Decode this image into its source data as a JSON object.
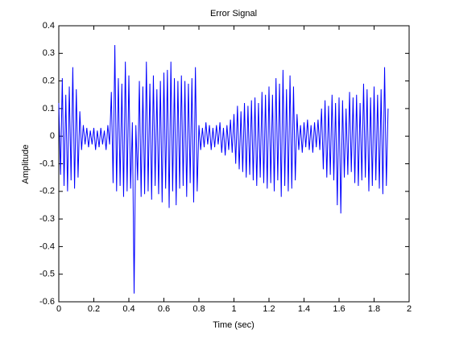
{
  "chart_data": {
    "type": "line",
    "title": "Error Signal",
    "x_label": "Time (sec)",
    "y_label": "Amplitude",
    "x": [
      0,
      0.01,
      0.02,
      0.03,
      0.04,
      0.05,
      0.06,
      0.07,
      0.08,
      0.09,
      0.1,
      0.11,
      0.12,
      0.13,
      0.14,
      0.15,
      0.16,
      0.17,
      0.18,
      0.19,
      0.2,
      0.21,
      0.22,
      0.23,
      0.24,
      0.25,
      0.26,
      0.27,
      0.28,
      0.29,
      0.3,
      0.31,
      0.32,
      0.33,
      0.34,
      0.35,
      0.36,
      0.37,
      0.38,
      0.39,
      0.4,
      0.41,
      0.42,
      0.43,
      0.44,
      0.45,
      0.46,
      0.47,
      0.48,
      0.49,
      0.5,
      0.51,
      0.52,
      0.53,
      0.54,
      0.55,
      0.56,
      0.57,
      0.58,
      0.59,
      0.6,
      0.61,
      0.62,
      0.63,
      0.64,
      0.65,
      0.66,
      0.67,
      0.68,
      0.69,
      0.7,
      0.71,
      0.72,
      0.73,
      0.74,
      0.75,
      0.76,
      0.77,
      0.78,
      0.79,
      0.8,
      0.81,
      0.82,
      0.83,
      0.84,
      0.85,
      0.86,
      0.87,
      0.88,
      0.89,
      0.9,
      0.91,
      0.92,
      0.93,
      0.94,
      0.95,
      0.96,
      0.97,
      0.98,
      0.99,
      1,
      1.01,
      1.02,
      1.03,
      1.04,
      1.05,
      1.06,
      1.07,
      1.08,
      1.09,
      1.1,
      1.11,
      1.12,
      1.13,
      1.14,
      1.15,
      1.16,
      1.17,
      1.18,
      1.19,
      1.2,
      1.21,
      1.22,
      1.23,
      1.24,
      1.25,
      1.26,
      1.27,
      1.28,
      1.29,
      1.3,
      1.31,
      1.32,
      1.33,
      1.34,
      1.35,
      1.36,
      1.37,
      1.38,
      1.39,
      1.4,
      1.41,
      1.42,
      1.43,
      1.44,
      1.45,
      1.46,
      1.47,
      1.48,
      1.49,
      1.5,
      1.51,
      1.52,
      1.53,
      1.54,
      1.55,
      1.56,
      1.57,
      1.58,
      1.59,
      1.6,
      1.61,
      1.62,
      1.63,
      1.64,
      1.65,
      1.66,
      1.67,
      1.68,
      1.69,
      1.7,
      1.71,
      1.72,
      1.73,
      1.74,
      1.75,
      1.76,
      1.77,
      1.78,
      1.79,
      1.8,
      1.81,
      1.82,
      1.83,
      1.84,
      1.85,
      1.86,
      1.87,
      1.88
    ],
    "series": [
      {
        "color": "#0000ff",
        "values": [
          0.12,
          -0.14,
          0.21,
          -0.18,
          0.15,
          -0.2,
          0.18,
          -0.16,
          0.25,
          -0.19,
          0.17,
          -0.15,
          0.09,
          -0.05,
          0.04,
          -0.03,
          0.03,
          -0.04,
          0.02,
          -0.03,
          0.03,
          -0.05,
          0.02,
          -0.04,
          0.03,
          -0.03,
          0.02,
          -0.05,
          0.04,
          -0.03,
          0.16,
          -0.17,
          0.33,
          -0.2,
          0.21,
          -0.18,
          0.19,
          -0.22,
          0.27,
          -0.2,
          0.22,
          -0.19,
          0.05,
          -0.57,
          0.04,
          -0.16,
          0.2,
          -0.22,
          0.18,
          -0.21,
          0.27,
          -0.2,
          0.19,
          -0.23,
          0.22,
          -0.18,
          0.17,
          -0.21,
          0.2,
          -0.24,
          0.23,
          -0.19,
          0.24,
          -0.26,
          0.27,
          -0.2,
          0.21,
          -0.25,
          0.2,
          -0.19,
          0.22,
          -0.18,
          0.2,
          -0.22,
          0.19,
          -0.17,
          0.21,
          -0.24,
          0.25,
          -0.2,
          0.04,
          -0.05,
          0.03,
          -0.04,
          0.05,
          -0.03,
          0.04,
          -0.05,
          0.03,
          -0.04,
          0.04,
          -0.03,
          0.05,
          -0.06,
          0.03,
          -0.07,
          0.04,
          -0.05,
          0.06,
          -0.06,
          0.08,
          -0.1,
          0.11,
          -0.12,
          0.09,
          -0.13,
          0.12,
          -0.15,
          0.11,
          -0.14,
          0.13,
          -0.16,
          0.14,
          -0.18,
          0.12,
          -0.15,
          0.16,
          -0.17,
          0.15,
          -0.19,
          0.18,
          -0.17,
          0.15,
          -0.2,
          0.21,
          -0.16,
          0.19,
          -0.22,
          0.24,
          -0.18,
          0.17,
          -0.2,
          0.22,
          -0.19,
          0.18,
          -0.16,
          0.08,
          -0.05,
          0.04,
          -0.06,
          0.05,
          -0.04,
          0.06,
          -0.05,
          0.04,
          -0.06,
          0.05,
          -0.04,
          0.06,
          -0.05,
          0.1,
          -0.12,
          0.13,
          -0.15,
          0.11,
          -0.14,
          0.15,
          -0.16,
          0.12,
          -0.25,
          0.14,
          -0.28,
          0.13,
          -0.15,
          0.1,
          -0.14,
          0.16,
          -0.13,
          0.14,
          -0.17,
          0.15,
          -0.18,
          0.12,
          -0.16,
          0.19,
          -0.15,
          0.17,
          -0.2,
          0.14,
          -0.18,
          0.18,
          -0.16,
          0.15,
          -0.19,
          0.17,
          -0.21,
          0.25,
          -0.18,
          0.1
        ]
      }
    ],
    "xlim": [
      0,
      2
    ],
    "xticks": [
      0,
      0.2,
      0.4,
      0.6,
      0.8,
      1,
      1.2,
      1.4,
      1.6,
      1.8,
      2
    ],
    "ylim": [
      -0.6,
      0.4
    ],
    "yticks": [
      -0.6,
      -0.5,
      -0.4,
      -0.3,
      -0.2,
      -0.1,
      0,
      0.1,
      0.2,
      0.3,
      0.4
    ],
    "grid": false
  }
}
